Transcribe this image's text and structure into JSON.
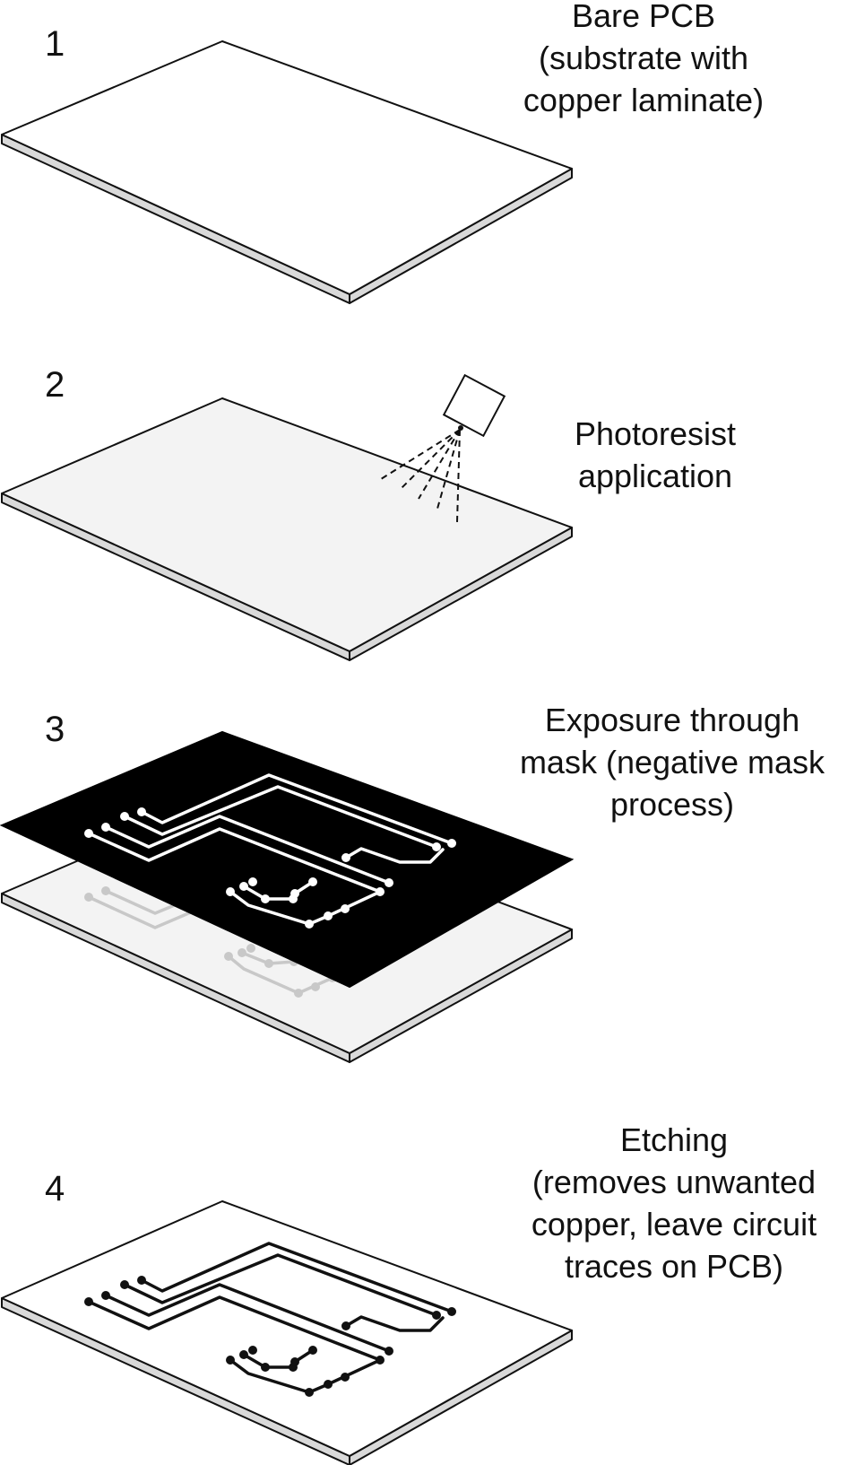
{
  "steps": [
    {
      "number": "1",
      "caption": [
        "Bare PCB",
        "(substrate with",
        "copper laminate)"
      ]
    },
    {
      "number": "2",
      "caption": [
        "Photoresist",
        "application"
      ]
    },
    {
      "number": "3",
      "caption": [
        "Exposure through",
        "mask (negative mask",
        "process)"
      ]
    },
    {
      "number": "4",
      "caption": [
        "Etching",
        "(removes unwanted",
        "copper, leave circuit",
        "traces on PCB)"
      ]
    }
  ],
  "colors": {
    "outline": "#111111",
    "board_top_bare": "#ffffff",
    "board_top_resist": "#f3f3f3",
    "board_edge": "#d9d9d9",
    "mask": "#000000",
    "mask_traces": "#ffffff",
    "ghost_traces": "#c8c8c8",
    "etched_traces": "#111111"
  }
}
